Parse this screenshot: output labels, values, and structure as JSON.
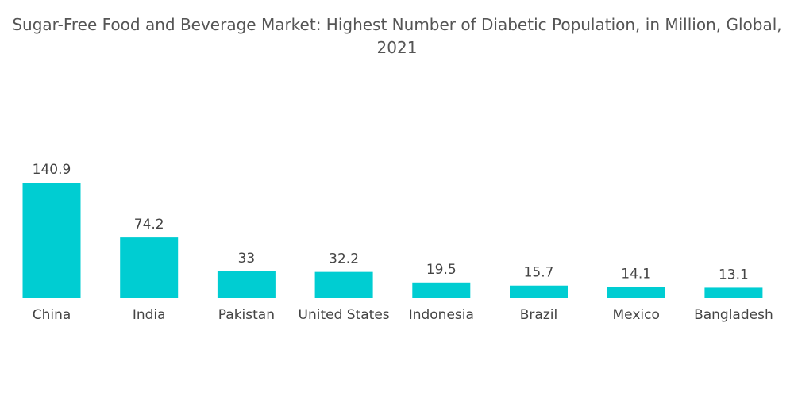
{
  "chart_data": {
    "type": "bar",
    "title": "Sugar-Free Food and Beverage Market: Highest Number of Diabetic Population, in Million, Global, 2021",
    "categories": [
      "China",
      "India",
      "Pakistan",
      "United States",
      "Indonesia",
      "Brazil",
      "Mexico",
      "Bangladesh"
    ],
    "values": [
      140.9,
      74.2,
      33,
      32.2,
      19.5,
      15.7,
      14.1,
      13.1
    ],
    "color": "#00cdd2"
  }
}
